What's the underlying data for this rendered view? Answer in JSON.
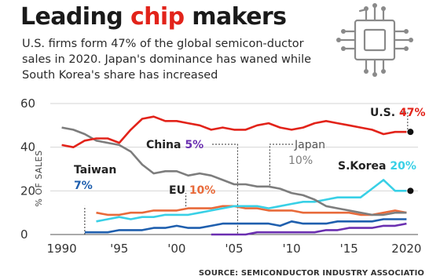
{
  "header": {
    "title_part1": "Leading ",
    "title_part2": "chip",
    "title_part3": " makers",
    "subtitle": "U.S. firms form 47% of the global semicon-ductor sales in 2020. Japan's dominance has waned while South Korea's share has increased"
  },
  "source": "SOURCE: SEMICONDUCTOR INDUSTRY ASSOCIATIO",
  "icon_name": "microchip-icon",
  "chart_data": {
    "type": "line",
    "xlabel": "",
    "ylabel": "% OF SALES",
    "xlim": [
      1989,
      2021
    ],
    "ylim": [
      0,
      60
    ],
    "yticks": [
      0,
      20,
      40,
      60
    ],
    "ytick_labels": [
      "0",
      "20",
      "40",
      "60"
    ],
    "xticks": [
      1990,
      1995,
      2000,
      2005,
      2010,
      2015,
      2020
    ],
    "xtick_labels": [
      "1990",
      "'95",
      "'00",
      "'05",
      "'10",
      "'15",
      "2020"
    ],
    "grid": "horizontal",
    "series": [
      {
        "name": "U.S.",
        "value_label": "47%",
        "color": "#e2231a",
        "x": [
          1990,
          1991,
          1992,
          1993,
          1994,
          1995,
          1996,
          1997,
          1998,
          1999,
          2000,
          2001,
          2002,
          2003,
          2004,
          2005,
          2006,
          2007,
          2008,
          2009,
          2010,
          2011,
          2012,
          2013,
          2014,
          2015,
          2016,
          2017,
          2018,
          2019,
          2020
        ],
        "y": [
          41,
          40,
          43,
          44,
          44,
          42,
          48,
          53,
          54,
          52,
          52,
          51,
          50,
          48,
          49,
          48,
          48,
          50,
          51,
          49,
          48,
          49,
          51,
          52,
          51,
          50,
          49,
          48,
          46,
          47,
          47
        ]
      },
      {
        "name": "Japan",
        "value_label": "10%",
        "color": "#7d7d7d",
        "x": [
          1990,
          1991,
          1992,
          1993,
          1994,
          1995,
          1996,
          1997,
          1998,
          1999,
          2000,
          2001,
          2002,
          2003,
          2004,
          2005,
          2006,
          2007,
          2008,
          2009,
          2010,
          2011,
          2012,
          2013,
          2014,
          2015,
          2016,
          2017,
          2018,
          2019,
          2020
        ],
        "y": [
          49,
          48,
          46,
          43,
          42,
          41,
          38,
          32,
          28,
          29,
          29,
          27,
          28,
          27,
          25,
          23,
          23,
          22,
          22,
          21,
          19,
          18,
          16,
          13,
          12,
          11,
          10,
          9,
          9,
          10,
          10
        ]
      },
      {
        "name": "S.Korea",
        "value_label": "20%",
        "color": "#39d0e6",
        "x": [
          1993,
          1994,
          1995,
          1996,
          1997,
          1998,
          1999,
          2000,
          2001,
          2002,
          2003,
          2004,
          2005,
          2006,
          2007,
          2008,
          2009,
          2010,
          2011,
          2012,
          2013,
          2014,
          2015,
          2016,
          2017,
          2018,
          2019,
          2020
        ],
        "y": [
          6,
          7,
          8,
          7,
          8,
          8,
          9,
          9,
          9,
          10,
          11,
          12,
          13,
          13,
          13,
          12,
          13,
          14,
          15,
          15,
          16,
          17,
          17,
          17,
          21,
          25,
          20,
          20
        ]
      },
      {
        "name": "EU",
        "value_label": "10%",
        "color": "#e86a3a",
        "x": [
          1993,
          1994,
          1995,
          1996,
          1997,
          1998,
          1999,
          2000,
          2001,
          2002,
          2003,
          2004,
          2005,
          2006,
          2007,
          2008,
          2009,
          2010,
          2011,
          2012,
          2013,
          2014,
          2015,
          2016,
          2017,
          2018,
          2019,
          2020
        ],
        "y": [
          10,
          9,
          9,
          10,
          10,
          11,
          11,
          11,
          12,
          12,
          12,
          13,
          13,
          12,
          12,
          11,
          11,
          11,
          10,
          10,
          10,
          10,
          10,
          9,
          9,
          10,
          11,
          10
        ]
      },
      {
        "name": "Taiwan",
        "value_label": "7%",
        "color": "#1f5fae",
        "x": [
          1992,
          1993,
          1994,
          1995,
          1996,
          1997,
          1998,
          1999,
          2000,
          2001,
          2002,
          2003,
          2004,
          2005,
          2006,
          2007,
          2008,
          2009,
          2010,
          2011,
          2012,
          2013,
          2014,
          2015,
          2016,
          2017,
          2018,
          2019,
          2020
        ],
        "y": [
          1,
          1,
          1,
          2,
          2,
          2,
          3,
          3,
          4,
          3,
          3,
          4,
          5,
          5,
          5,
          5,
          5,
          4,
          6,
          5,
          5,
          5,
          6,
          6,
          6,
          6,
          7,
          7,
          7
        ]
      },
      {
        "name": "China",
        "value_label": "5%",
        "color": "#6a2fb0",
        "x": [
          2003,
          2004,
          2005,
          2006,
          2007,
          2008,
          2009,
          2010,
          2011,
          2012,
          2013,
          2014,
          2015,
          2016,
          2017,
          2018,
          2019,
          2020
        ],
        "y": [
          0,
          0,
          0,
          0,
          1,
          1,
          1,
          1,
          1,
          1,
          2,
          2,
          3,
          3,
          3,
          4,
          4,
          5
        ]
      }
    ],
    "annotations": [
      {
        "series": "U.S.",
        "name": "U.S.",
        "value": "47%"
      },
      {
        "series": "China",
        "name": "China ",
        "value": "5%"
      },
      {
        "series": "Japan",
        "name": "Japan",
        "value": "10%"
      },
      {
        "series": "Taiwan",
        "name": "Taiwan",
        "value": "7%"
      },
      {
        "series": "EU",
        "name": "EU ",
        "value": "10%"
      },
      {
        "series": "S.Korea",
        "name": "S.Korea ",
        "value": "20%"
      }
    ]
  }
}
